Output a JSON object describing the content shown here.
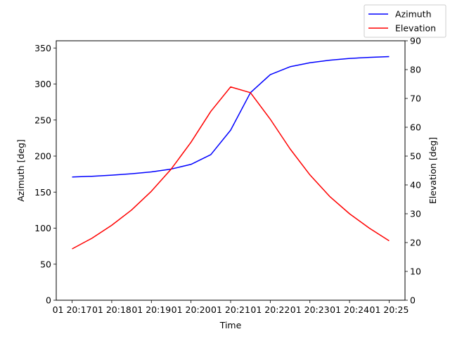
{
  "chart_data": {
    "type": "line",
    "title": "",
    "xlabel": "Time",
    "ylabel_left": "Azimuth [deg]",
    "ylabel_right": "Elevation [deg]",
    "x": [
      "20:17:00",
      "20:17:30",
      "20:18:00",
      "20:18:30",
      "20:19:00",
      "20:19:30",
      "20:20:00",
      "20:20:30",
      "20:21:00",
      "20:21:30",
      "20:22:00",
      "20:22:30",
      "20:23:00",
      "20:23:30",
      "20:24:00",
      "20:24:30",
      "20:25:00"
    ],
    "x_tick_labels": [
      "01 20:17",
      "01 20:18",
      "01 20:19",
      "01 20:20",
      "01 20:21",
      "01 20:22",
      "01 20:23",
      "01 20:24",
      "01 20:25"
    ],
    "xlim": [
      "20:16:36",
      "20:25:24"
    ],
    "left_axis": {
      "ylim": [
        0,
        360
      ],
      "ticks": [
        0,
        50,
        100,
        150,
        200,
        250,
        300,
        350
      ]
    },
    "right_axis": {
      "ylim": [
        0,
        90
      ],
      "ticks": [
        0,
        10,
        20,
        30,
        40,
        50,
        60,
        70,
        80,
        90
      ]
    },
    "grid": false,
    "legend_position": "top-right",
    "series": [
      {
        "name": "Azimuth",
        "axis": "left",
        "color": "#0000ff",
        "values": [
          171,
          172,
          173.5,
          175.5,
          178,
          182,
          188.5,
          202,
          236,
          288,
          313,
          324,
          329.5,
          333,
          335.5,
          337,
          338
        ]
      },
      {
        "name": "Elevation",
        "axis": "right",
        "color": "#ff0000",
        "values": [
          17.8,
          21.5,
          26,
          31.3,
          37.8,
          45.5,
          54.8,
          65.5,
          74,
          72,
          62.8,
          52.5,
          43.5,
          36,
          30,
          25,
          20.6
        ]
      }
    ]
  }
}
